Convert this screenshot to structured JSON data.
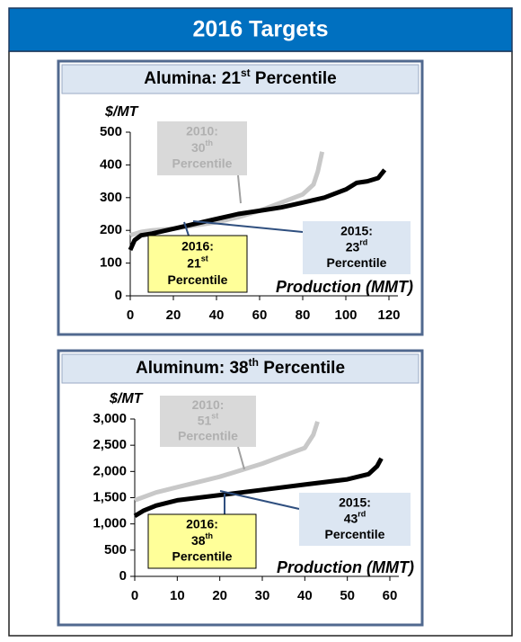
{
  "header": "2016 Targets",
  "chart_data": [
    {
      "type": "line",
      "title": [
        "Alumina: 21",
        "st",
        " Percentile"
      ],
      "ylabel": "$/MT",
      "xlabel": "Production (MMT)",
      "xlim": [
        0,
        120
      ],
      "ylim": [
        0,
        500
      ],
      "xticks": [
        0,
        20,
        40,
        60,
        80,
        100,
        120
      ],
      "yticks": [
        0,
        100,
        200,
        300,
        400,
        500
      ],
      "series": [
        {
          "color": "#c8c8c8",
          "x": [
            0,
            5,
            10,
            20,
            30,
            40,
            50,
            60,
            70,
            80,
            85,
            87,
            89
          ],
          "values": [
            185,
            195,
            200,
            205,
            215,
            225,
            240,
            260,
            285,
            310,
            340,
            380,
            440
          ]
        },
        {
          "color": "#000000",
          "x": [
            0,
            2,
            5,
            10,
            20,
            30,
            40,
            50,
            60,
            70,
            80,
            90,
            100,
            105,
            110,
            115,
            118
          ],
          "values": [
            140,
            170,
            185,
            190,
            205,
            220,
            235,
            250,
            260,
            270,
            285,
            300,
            325,
            345,
            350,
            360,
            385
          ]
        }
      ],
      "annotations": [
        {
          "year": "2010:",
          "rank": "30",
          "suffix": "th",
          "word": "Percentile",
          "color": "#d9d9d9",
          "text_color": "#b0b0b0"
        },
        {
          "year": "2016:",
          "rank": "21",
          "suffix": "st",
          "word": "Percentile",
          "color": "#ffff99",
          "text_color": "#000000"
        },
        {
          "year": "2015:",
          "rank": "23",
          "suffix": "rd",
          "word": "Percentile",
          "color": "#dce6f2",
          "text_color": "#000000"
        }
      ]
    },
    {
      "type": "line",
      "title": [
        "Aluminum: 38",
        "th",
        " Percentile"
      ],
      "ylabel": "$/MT",
      "xlabel": "Production (MMT)",
      "xlim": [
        0,
        60
      ],
      "ylim": [
        0,
        3000
      ],
      "xticks": [
        0,
        10,
        20,
        30,
        40,
        50,
        60
      ],
      "yticks": [
        0,
        500,
        {
          "value": 1000,
          "label": "1,000"
        },
        {
          "value": 1500,
          "label": "1,500"
        },
        {
          "value": 2000,
          "label": "2,000"
        },
        {
          "value": 2500,
          "label": "2,500"
        },
        {
          "value": 3000,
          "label": "3,000"
        }
      ],
      "series": [
        {
          "color": "#c8c8c8",
          "x": [
            0,
            5,
            10,
            20,
            30,
            35,
            40,
            42,
            43
          ],
          "values": [
            1450,
            1600,
            1700,
            1900,
            2150,
            2300,
            2450,
            2700,
            2950
          ]
        },
        {
          "color": "#000000",
          "x": [
            0,
            2,
            5,
            10,
            20,
            30,
            40,
            50,
            55,
            57,
            58
          ],
          "values": [
            1150,
            1250,
            1350,
            1450,
            1550,
            1650,
            1750,
            1850,
            1950,
            2100,
            2250
          ]
        }
      ],
      "annotations": [
        {
          "year": "2010:",
          "rank": "51",
          "suffix": "st",
          "word": "Percentile",
          "color": "#d9d9d9",
          "text_color": "#b0b0b0"
        },
        {
          "year": "2016:",
          "rank": "38",
          "suffix": "th",
          "word": "Percentile",
          "color": "#ffff99",
          "text_color": "#000000"
        },
        {
          "year": "2015:",
          "rank": "43",
          "suffix": "rd",
          "word": "Percentile",
          "color": "#dce6f2",
          "text_color": "#000000"
        }
      ]
    }
  ]
}
